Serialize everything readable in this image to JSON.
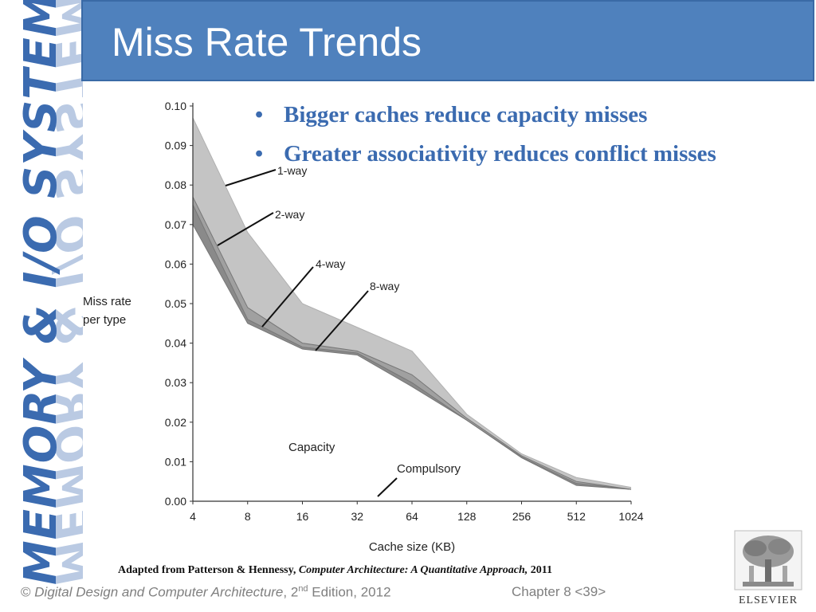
{
  "sidebar": {
    "title": "MEMORY & I/O SYSTEMS"
  },
  "header": {
    "title": "Miss Rate Trends"
  },
  "bullets": [
    "Bigger caches reduce  capacity misses",
    "Greater associativity reduces conflict misses"
  ],
  "colors": {
    "accent": "#4f81bd",
    "sidebar_text": "#3b6bb0",
    "bullet_text": "#3b6bb0"
  },
  "chart_data": {
    "type": "area",
    "xlabel": "Cache size (KB)",
    "ylabel": "Miss rate per type",
    "categories": [
      "4",
      "8",
      "16",
      "32",
      "64",
      "128",
      "256",
      "512",
      "1024"
    ],
    "ylim": [
      0,
      0.1
    ],
    "yticks": [
      "0.00",
      "0.01",
      "0.02",
      "0.03",
      "0.04",
      "0.05",
      "0.06",
      "0.07",
      "0.08",
      "0.09",
      "0.10"
    ],
    "series": [
      {
        "name": "1-way",
        "values": [
          0.097,
          0.068,
          0.05,
          0.044,
          0.038,
          0.022,
          0.012,
          0.006,
          0.0035
        ]
      },
      {
        "name": "2-way",
        "values": [
          0.077,
          0.049,
          0.04,
          0.038,
          0.032,
          0.021,
          0.0115,
          0.005,
          0.003
        ]
      },
      {
        "name": "4-way",
        "values": [
          0.075,
          0.046,
          0.039,
          0.0375,
          0.03,
          0.0205,
          0.0112,
          0.0045,
          0.003
        ]
      },
      {
        "name": "8-way",
        "values": [
          0.07,
          0.045,
          0.0385,
          0.037,
          0.029,
          0.0205,
          0.011,
          0.004,
          0.003
        ]
      }
    ],
    "compulsory": [
      0.0,
      0.0,
      0.0,
      0.0,
      0.0,
      0.0,
      0.0,
      0.0,
      0.0
    ],
    "annotations": [
      "1-way",
      "2-way",
      "4-way",
      "8-way",
      "Capacity",
      "Compulsory"
    ],
    "grid": false,
    "legend": "none"
  },
  "footer": {
    "credit_prefix": "Adapted from Patterson & Hennessy, ",
    "credit_book": "Computer Architecture: A Quantitative Approach,",
    "credit_year": " 2011",
    "copyright_symbol": "©",
    "copyright_book": "Digital Design and Computer Architecture",
    "copyright_rest_a": ", 2",
    "copyright_sup": "nd",
    "copyright_rest_b": " Edition, 2012",
    "chapter": "Chapter 8 <39>",
    "logo_text": "ELSEVIER"
  }
}
